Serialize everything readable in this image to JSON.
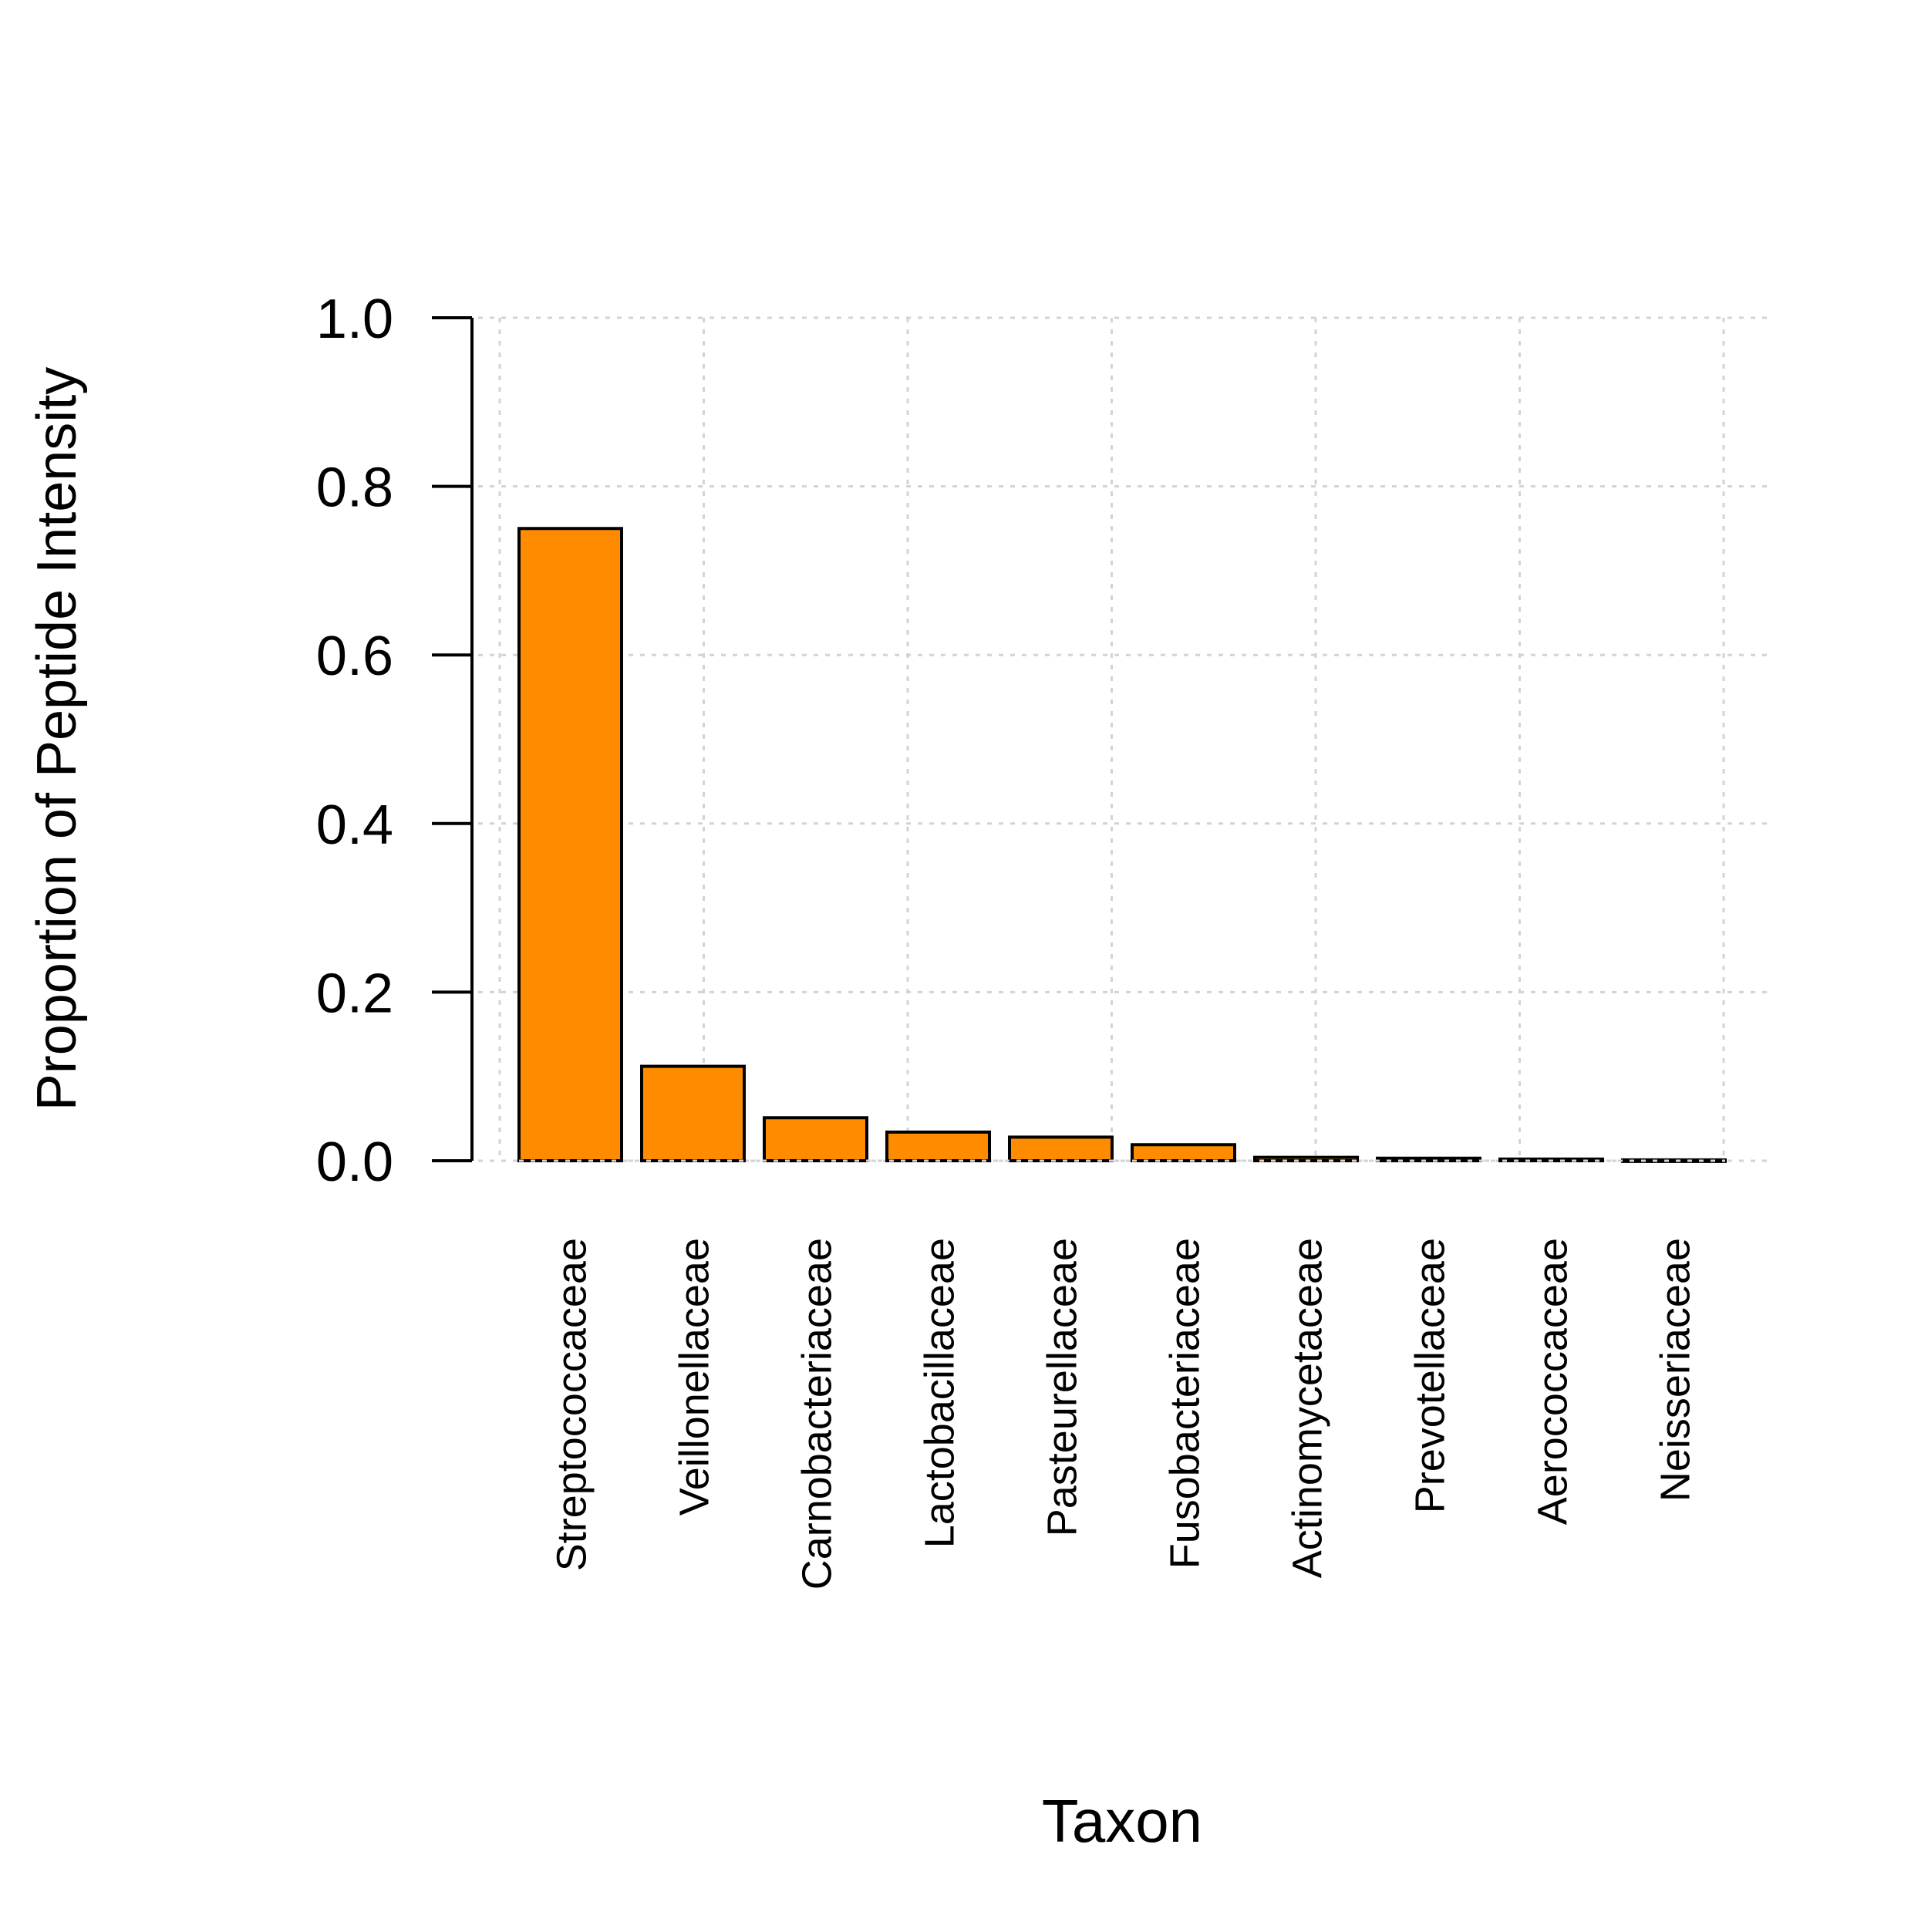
{
  "chart_data": {
    "type": "bar",
    "title": "",
    "xlabel": "Taxon",
    "ylabel": "Proportion of Peptide Intensity",
    "categories": [
      "Streptococcaceae",
      "Veillonellaceae",
      "Carnobacteriaceae",
      "Lactobacillaceae",
      "Pasteurellaceae",
      "Fusobacteriaceae",
      "Actinomycetaceae",
      "Prevotellaceae",
      "Aerococcaceae",
      "Neisseriaceae"
    ],
    "values": [
      0.75,
      0.112,
      0.051,
      0.034,
      0.028,
      0.019,
      0.004,
      0.003,
      0.002,
      0.001
    ],
    "ylim": [
      0,
      1
    ],
    "yticks": [
      0.0,
      0.2,
      0.4,
      0.6,
      0.8,
      1.0
    ],
    "ytick_labels": [
      "0.0",
      "0.2",
      "0.4",
      "0.6",
      "0.8",
      "1.0"
    ],
    "grid": true,
    "legend": "none",
    "colors": {
      "bar_fill": "#ff8c00",
      "bar_stroke": "#000000",
      "grid": "#d3d3d3",
      "axis": "#000000"
    }
  }
}
